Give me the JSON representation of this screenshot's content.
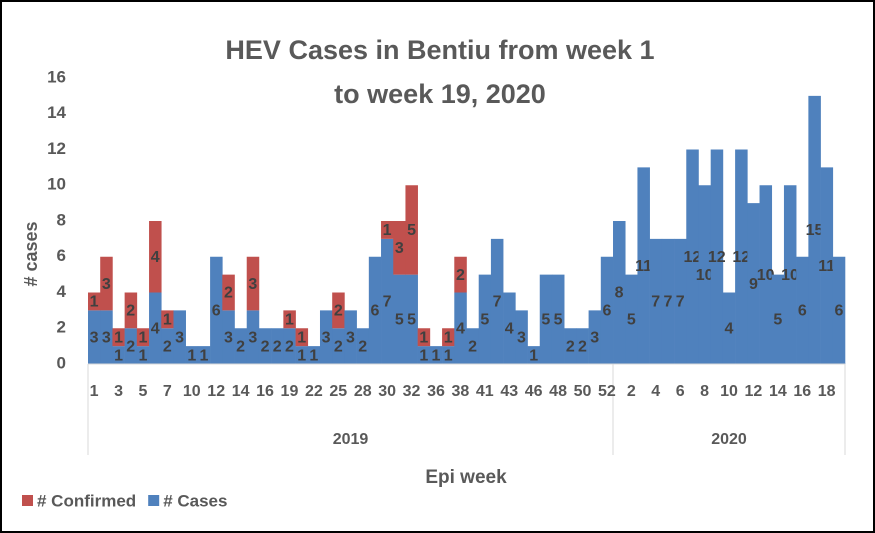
{
  "chart_data": {
    "type": "stacked_bar",
    "title": "HEV Cases in Bentiu from week 1 to week 19, 2020",
    "y_label": "# cases",
    "x_label": "Epi week",
    "ylim": [
      0,
      16
    ],
    "yticks": [
      0,
      2,
      4,
      6,
      8,
      10,
      12,
      14,
      16
    ],
    "grid": false,
    "legend": "bottom-left",
    "category_groups": [
      {
        "name": "2019",
        "categories": [
          "1",
          null,
          "3",
          null,
          "5",
          null,
          "7",
          null,
          "10",
          null,
          "12",
          null,
          "14",
          null,
          "16",
          null,
          "19",
          null,
          "22",
          null,
          "25",
          null,
          "28",
          null,
          "30",
          null,
          "32",
          null,
          "36",
          null,
          "38",
          null,
          "41",
          null,
          "43",
          null,
          "46",
          null,
          "48",
          null,
          "50",
          null,
          "52"
        ]
      },
      {
        "name": "2020",
        "categories": [
          null,
          "2",
          null,
          "4",
          null,
          "6",
          null,
          "8",
          null,
          "10",
          null,
          "12",
          null,
          "14",
          null,
          "16",
          null,
          "18",
          null
        ]
      }
    ],
    "series": [
      {
        "name": "# Confirmed",
        "color": "#c0504d",
        "values": [
          1,
          3,
          1,
          2,
          1,
          4,
          1,
          null,
          null,
          null,
          null,
          2,
          null,
          3,
          null,
          null,
          1,
          1,
          null,
          null,
          2,
          null,
          null,
          null,
          1,
          3,
          5,
          1,
          null,
          1,
          2,
          null,
          null,
          null,
          null,
          null,
          null,
          null,
          null,
          null,
          null,
          null,
          null,
          null,
          null,
          null,
          null,
          null,
          null,
          null,
          null,
          null,
          null,
          null,
          null,
          null,
          null,
          null,
          null,
          null,
          null,
          null
        ]
      },
      {
        "name": "# Cases",
        "color": "#4f81bd",
        "values": [
          3,
          3,
          1,
          2,
          1,
          4,
          2,
          3,
          1,
          1,
          6,
          3,
          2,
          3,
          2,
          2,
          2,
          1,
          1,
          3,
          2,
          3,
          2,
          6,
          7,
          5,
          5,
          1,
          1,
          1,
          4,
          2,
          5,
          7,
          4,
          3,
          1,
          5,
          5,
          2,
          2,
          3,
          6,
          8,
          5,
          11,
          7,
          7,
          7,
          12,
          10,
          12,
          4,
          12,
          9,
          10,
          5,
          10,
          6,
          15,
          11,
          6
        ]
      }
    ]
  }
}
